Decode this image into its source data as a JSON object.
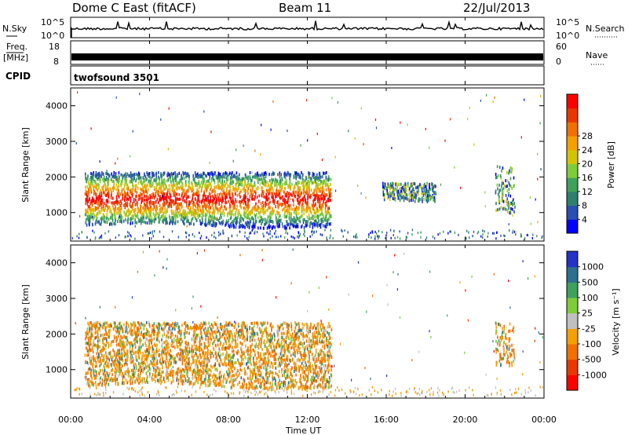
{
  "header": {
    "station": "Dome C East (fitACF)",
    "beam": "Beam 11",
    "date": "22/Jul/2013"
  },
  "strips": {
    "nsky_label": "N.Sky",
    "nsearch_label": "N.Search",
    "nsearch_style": "dotted",
    "nsky_ticks": [
      "10^5",
      "10^0"
    ],
    "nsearch_ticks": [
      "10^5",
      "10^0"
    ],
    "freq_label": "Freq.",
    "freq_unit": "[MHz]",
    "freq_ticks": [
      "18",
      "8"
    ],
    "nave_label": "Nave",
    "nave_ticks": [
      "60",
      "0"
    ],
    "cpid_label": "CPID",
    "cpid_value": "twofsound 3501"
  },
  "chart_data": [
    {
      "type": "heatmap",
      "name": "power",
      "ylabel": "Slant Range [km]",
      "yticks": [
        "1000",
        "2000",
        "3000",
        "4000"
      ],
      "ylim": [
        200,
        4500
      ],
      "colorbar_label": "Power [dB]",
      "colorbar_ticks": [
        "4",
        "8",
        "12",
        "16",
        "20",
        "24",
        "28"
      ],
      "colorbar_colors": [
        "#0000ff",
        "#2a4fb0",
        "#2f7f6e",
        "#3fa15c",
        "#7fcc3a",
        "#d4c400",
        "#f4a000",
        "#f07000",
        "#e83800",
        "#ff0000"
      ],
      "xlim_hours": [
        0,
        24
      ],
      "echo_regions": [
        {
          "start_h": 0.7,
          "end_h": 13.2,
          "range_km": [
            600,
            2100
          ],
          "level": "high"
        },
        {
          "start_h": 15.8,
          "end_h": 18.5,
          "range_km": [
            1300,
            1800
          ],
          "level": "low"
        },
        {
          "start_h": 21.5,
          "end_h": 22.5,
          "range_km": [
            1000,
            2300
          ],
          "level": "medium"
        }
      ]
    },
    {
      "type": "heatmap",
      "name": "velocity",
      "ylabel": "Slant Range [km]",
      "yticks": [
        "1000",
        "2000",
        "3000",
        "4000"
      ],
      "ylim": [
        200,
        4500
      ],
      "colorbar_label": "Velocity [m s⁻¹]",
      "colorbar_ticks": [
        "1000",
        "500",
        "100",
        "25",
        "-25",
        "-100",
        "-500",
        "-1000"
      ],
      "colorbar_colors": [
        "#2432c8",
        "#2f6f8e",
        "#3fa15c",
        "#7fcc3a",
        "#c0c0c0",
        "#f4a000",
        "#f07000",
        "#e83800",
        "#ff0000"
      ],
      "xlim_hours": [
        0,
        24
      ],
      "echo_regions": [
        {
          "start_h": 0.7,
          "end_h": 13.2,
          "range_km": [
            500,
            2300
          ],
          "level": "toward-away mixed"
        },
        {
          "start_h": 21.5,
          "end_h": 22.5,
          "range_km": [
            1000,
            2300
          ],
          "level": "mixed"
        }
      ]
    }
  ],
  "time_axis": {
    "label": "Time UT",
    "ticks": [
      "00:00",
      "04:00",
      "08:00",
      "12:00",
      "16:00",
      "20:00",
      "00:00"
    ]
  }
}
